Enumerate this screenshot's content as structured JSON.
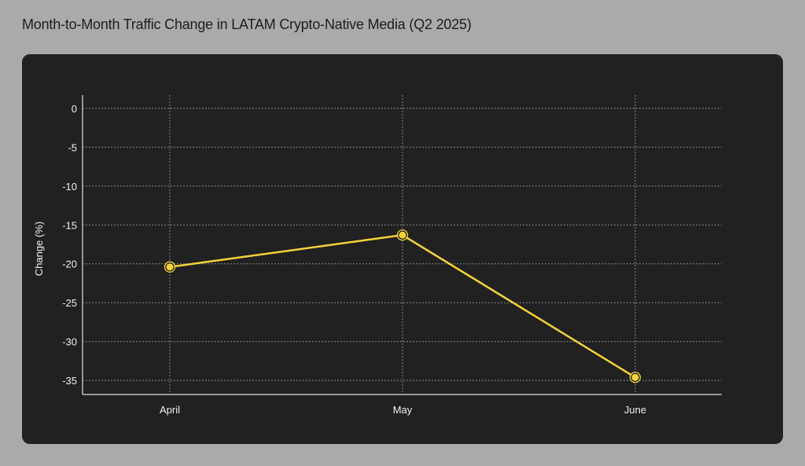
{
  "page_title": "Month-to-Month Traffic Change in LATAM Crypto-Native Media (Q2 2025)",
  "chart_data": {
    "type": "line",
    "title": "Month-to-Month Traffic Change in LATAM Crypto-Native Media (Q2 2025)",
    "xlabel": "",
    "ylabel": "Change (%)",
    "categories": [
      "April",
      "May",
      "June"
    ],
    "series": [
      {
        "values": [
          -20.4,
          -16.3,
          -34.6
        ],
        "color": "#f5d33a"
      }
    ],
    "yticks": [
      0,
      -5,
      -10,
      -15,
      -20,
      -25,
      -30,
      -35
    ],
    "ylim": [
      -36.8,
      1.7
    ],
    "grid": true,
    "legend": "none"
  }
}
